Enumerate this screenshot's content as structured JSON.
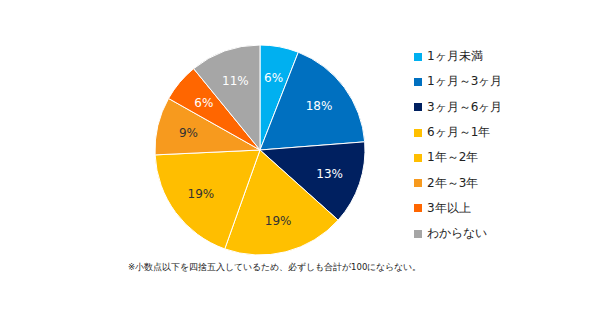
{
  "chart_data": {
    "type": "pie",
    "categories": [
      "1ヶ月未満",
      "1ヶ月～3ヶ月",
      "3ヶ月～6ヶ月",
      "6ヶ月～1年",
      "1年～2年",
      "2年～3年",
      "3年以上",
      "わからない"
    ],
    "values": [
      6,
      18,
      13,
      19,
      19,
      9,
      6,
      11
    ],
    "value_labels": [
      "6%",
      "18%",
      "13%",
      "19%",
      "19%",
      "9%",
      "6%",
      "11%"
    ],
    "colors": [
      "#00b0f0",
      "#0070c0",
      "#002060",
      "#ffc000",
      "#ffbe00",
      "#f79a1e",
      "#ff6600",
      "#a6a6a6"
    ],
    "data_labels": true,
    "annotations": [
      "※小数点以下を四捨五入しているため、必ずしも合計が100にならない。"
    ]
  }
}
